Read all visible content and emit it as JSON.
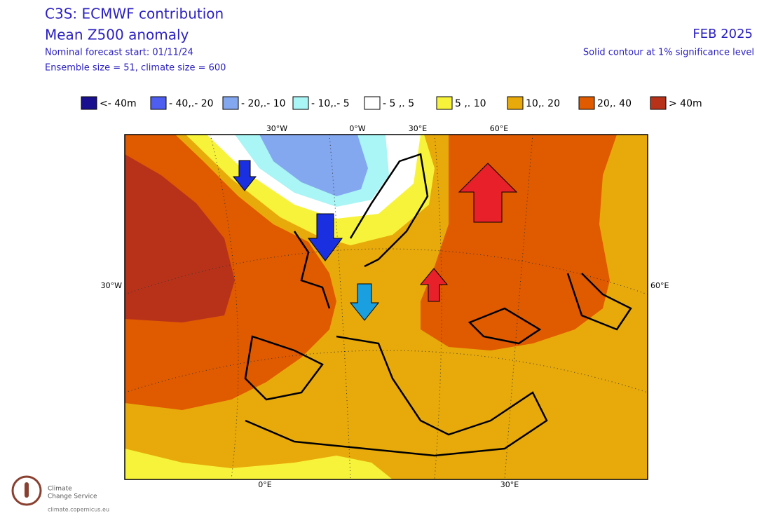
{
  "header": {
    "title": "C3S: ECMWF contribution",
    "subtitle": "Mean Z500 anomaly",
    "forecast_start": "Nominal forecast start: 01/11/24",
    "ensemble": "Ensemble size = 51, climate size = 600",
    "period": "FEB 2025",
    "note": "Solid contour at 1% significance level"
  },
  "legend": {
    "items": [
      {
        "label": "<- 40m",
        "color": "#1a0f8f"
      },
      {
        "label": "- 40,.- 20",
        "color": "#4e5ef0"
      },
      {
        "label": "- 20,.- 10",
        "color": "#84a8f0"
      },
      {
        "label": "- 10,.- 5",
        "color": "#aaf5f5"
      },
      {
        "label": "- 5 ,. 5",
        "color": "#ffffff"
      },
      {
        "label": "5 ,. 10",
        "color": "#f7f33a"
      },
      {
        "label": "10,. 20",
        "color": "#e8aa0a"
      },
      {
        "label": "20,. 40",
        "color": "#e05a00"
      },
      {
        "label": ">  40m",
        "color": "#b8321a"
      }
    ]
  },
  "map": {
    "top_labels": [
      "30°W",
      "0°W",
      "30°E",
      "60°E"
    ],
    "left_label": "30°W",
    "right_label": "60°E",
    "bottom_labels": [
      "0°E",
      "30°E"
    ]
  },
  "logo": {
    "line1": "Climate",
    "line2": "Change Service",
    "url": "climate.copernicus.eu"
  }
}
